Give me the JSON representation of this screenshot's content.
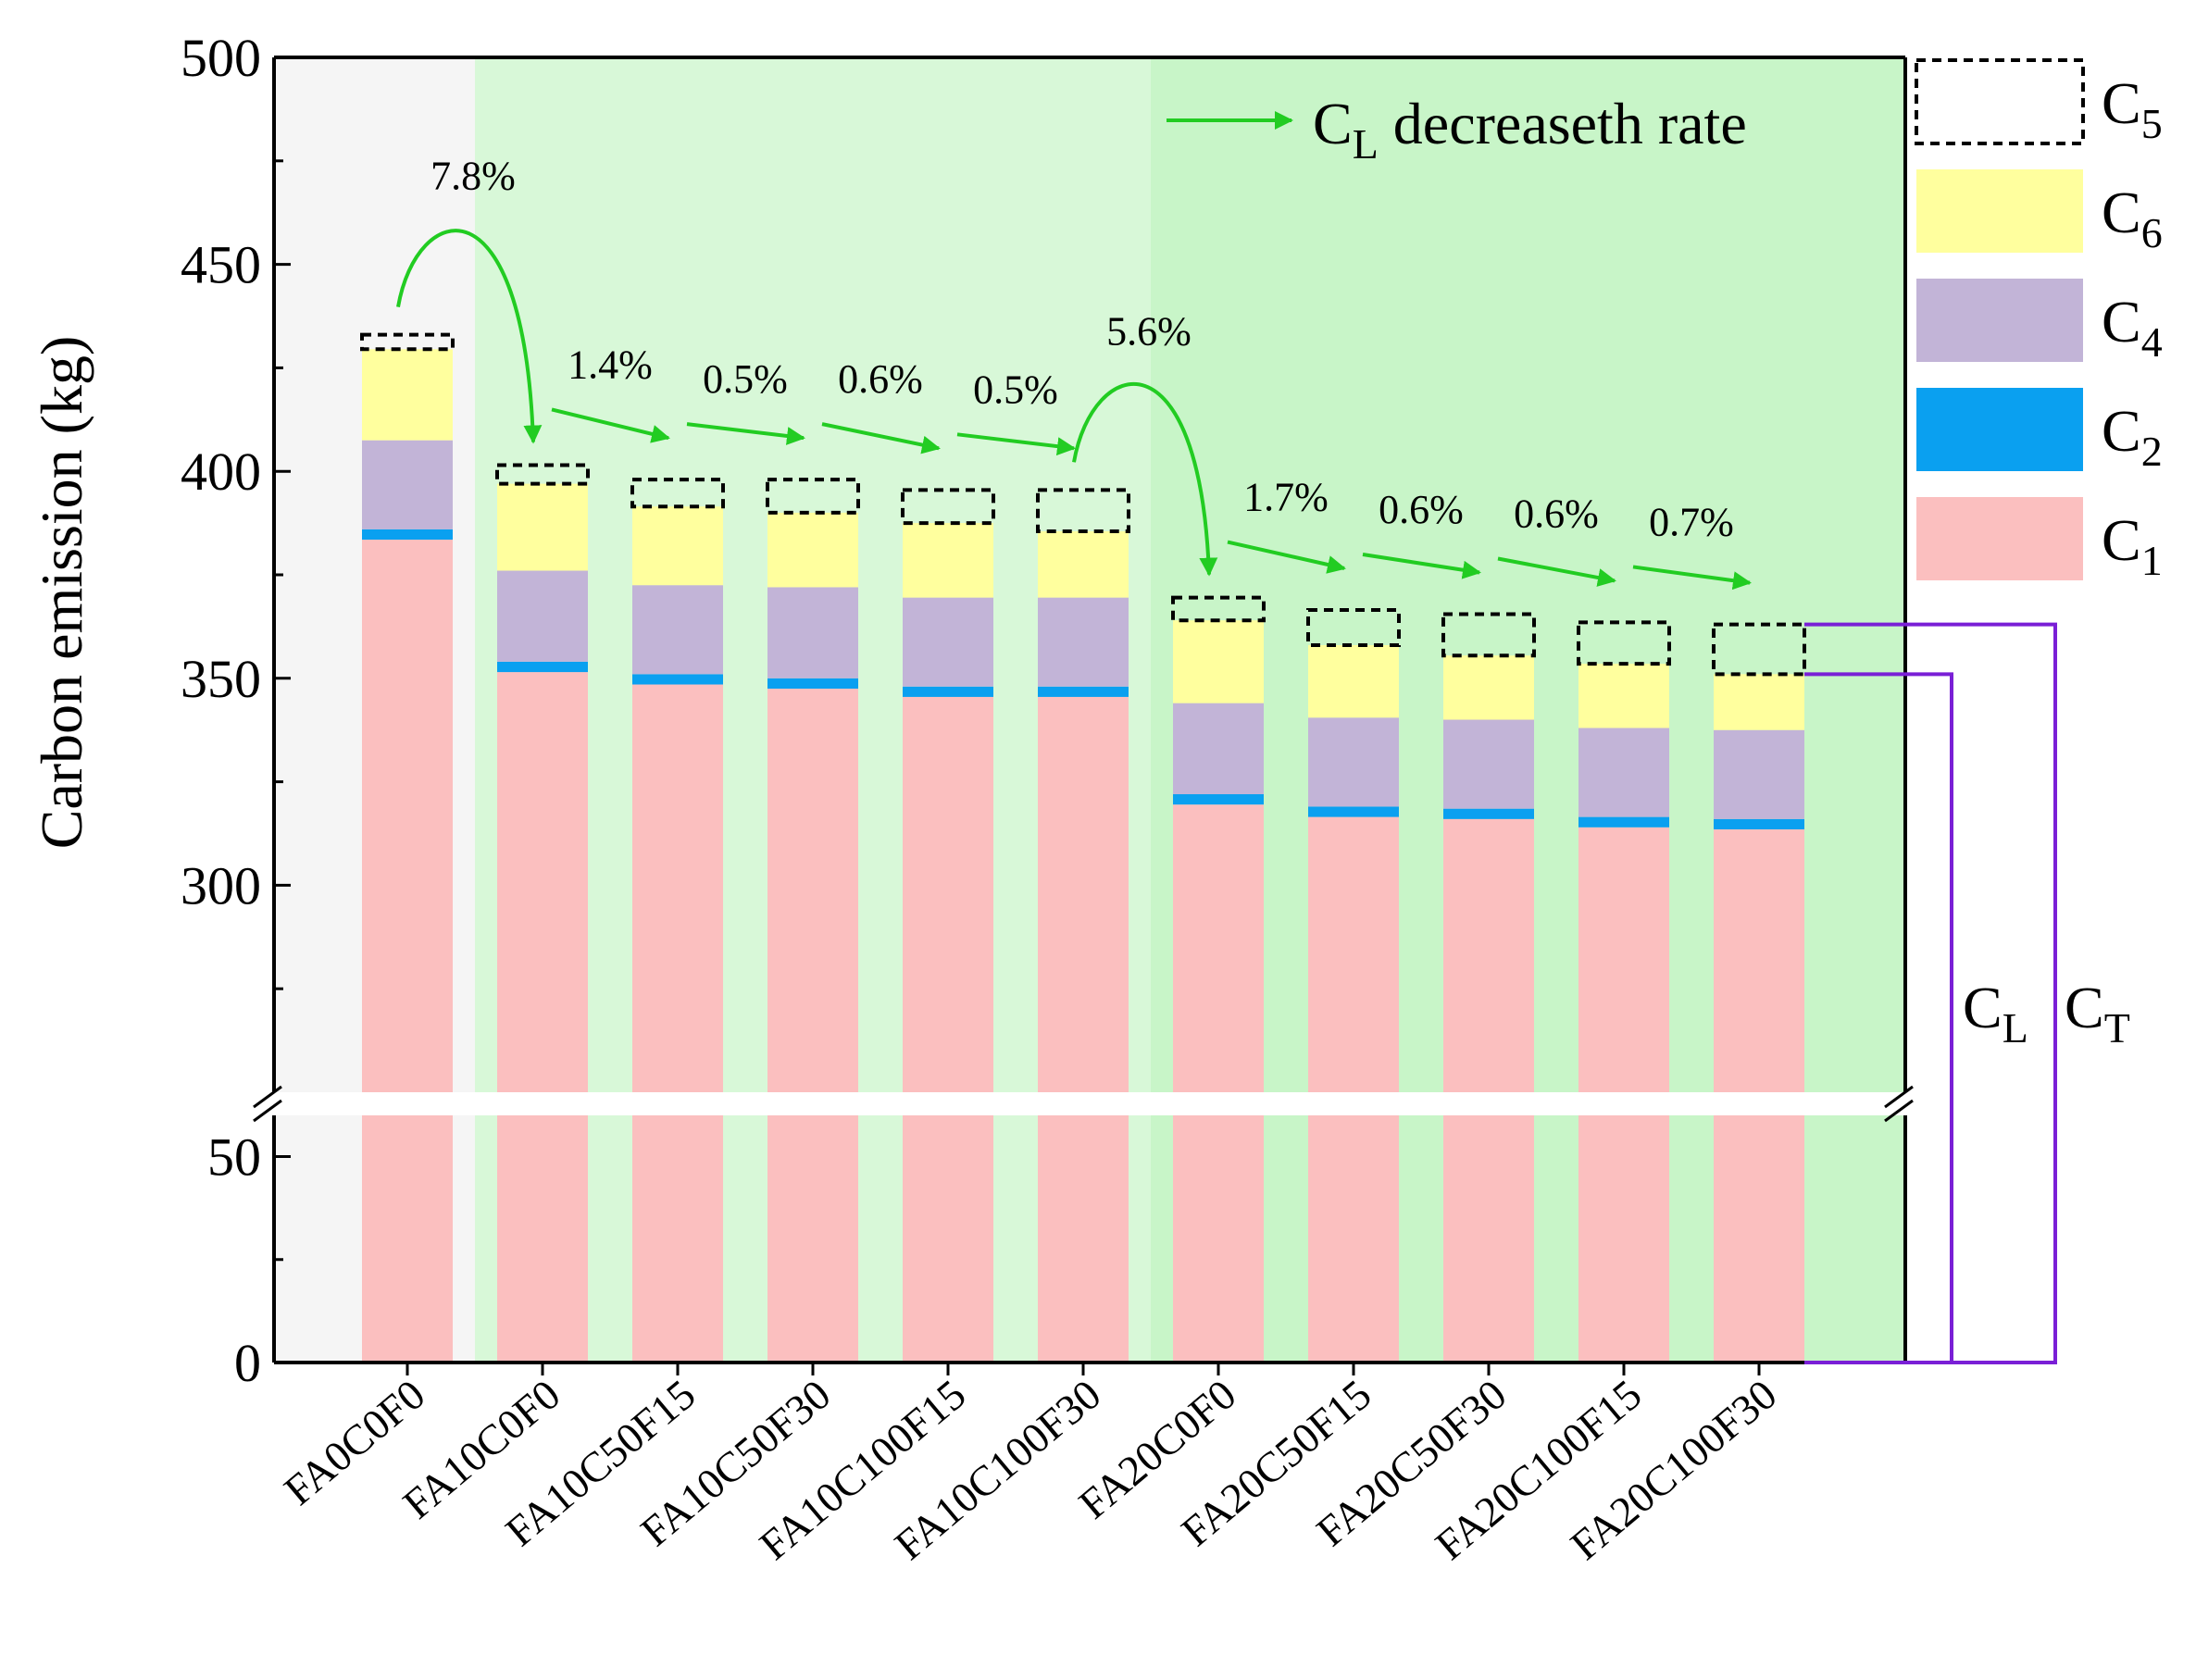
{
  "chart_data": {
    "type": "bar",
    "stacked": true,
    "ylabel": "Carbon emission (kg)",
    "yaxis": {
      "broken": true,
      "lower_range": [
        0,
        60
      ],
      "upper_range": [
        250,
        500
      ],
      "lower_ticks": [
        "0",
        "50"
      ],
      "upper_ticks": [
        "300",
        "350",
        "400",
        "450",
        "500"
      ]
    },
    "categories": [
      "FA0C0F0",
      "FA10C0F0",
      "FA10C50F15",
      "FA10C50F30",
      "FA10C100F15",
      "FA10C100F30",
      "FA20C0F0",
      "FA20C50F15",
      "FA20C50F30",
      "FA20C100F15",
      "FA20C100F30"
    ],
    "series": [
      {
        "key": "C1",
        "name": "C",
        "sub": "1",
        "color": "#fbbfbf",
        "values": [
          383.5,
          351.5,
          348.5,
          347.5,
          345.5,
          345.5,
          319.5,
          316.5,
          316.0,
          314.0,
          313.5
        ]
      },
      {
        "key": "C2",
        "name": "C",
        "sub": "2",
        "color": "#0aa0f0",
        "values": [
          2.5,
          2.5,
          2.5,
          2.5,
          2.5,
          2.5,
          2.5,
          2.5,
          2.5,
          2.5,
          2.5
        ]
      },
      {
        "key": "C4",
        "name": "C",
        "sub": "4",
        "color": "#c2b4d7",
        "values": [
          21.5,
          22.0,
          21.5,
          22.0,
          21.5,
          21.5,
          22.0,
          21.5,
          21.5,
          21.5,
          21.5
        ]
      },
      {
        "key": "C6",
        "name": "C",
        "sub": "6",
        "color": "#ffff9e",
        "values": [
          22.0,
          21.0,
          19.0,
          18.0,
          18.0,
          16.0,
          20.0,
          17.5,
          15.5,
          15.5,
          13.5
        ]
      },
      {
        "key": "C5",
        "name": "C",
        "sub": "5",
        "color": "none",
        "dashed": true,
        "values": [
          3.5,
          4.5,
          6.5,
          8.0,
          8.0,
          10.0,
          5.5,
          8.5,
          10.0,
          10.0,
          12.0
        ]
      }
    ],
    "legend_order": [
      "C5",
      "C6",
      "C4",
      "C2",
      "C1"
    ],
    "legend_position": "top-right, outside plot",
    "background_regions": [
      {
        "from": "FA0C0F0",
        "to": "FA0C0F0",
        "color": "#f5f5f5"
      },
      {
        "from": "FA10C0F0",
        "to": "FA10C100F30",
        "color": "#d8f8d8"
      },
      {
        "from": "FA20C0F0",
        "to": "FA20C100F30",
        "color": "#c8f5c8"
      }
    ],
    "decrease_arrows": {
      "legend_text": "C",
      "legend_sub": "L",
      "legend_suffix": " decreaseth rate",
      "color": "#22cc22",
      "items": [
        {
          "from": 0,
          "to": 1,
          "label": "7.8%",
          "curved": true
        },
        {
          "from": 1,
          "to": 2,
          "label": "1.4%"
        },
        {
          "from": 2,
          "to": 3,
          "label": "0.5%"
        },
        {
          "from": 3,
          "to": 4,
          "label": "0.6%"
        },
        {
          "from": 4,
          "to": 5,
          "label": "0.5%"
        },
        {
          "from": 5,
          "to": 6,
          "label": "5.6%",
          "curved": true
        },
        {
          "from": 6,
          "to": 7,
          "label": "1.7%"
        },
        {
          "from": 7,
          "to": 8,
          "label": "0.6%"
        },
        {
          "from": 8,
          "to": 9,
          "label": "0.6%"
        },
        {
          "from": 9,
          "to": 10,
          "label": "0.7%"
        }
      ]
    },
    "brackets": {
      "color": "#7a1fd6",
      "cl_label": "C",
      "cl_sub": "L",
      "ct_label": "C",
      "ct_sub": "T"
    }
  }
}
